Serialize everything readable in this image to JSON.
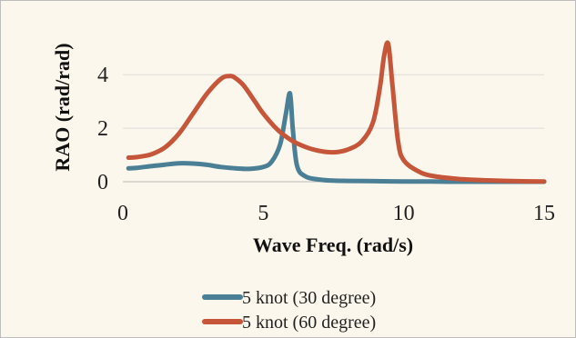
{
  "chart_data": {
    "type": "line",
    "xlabel": "Wave Freq. (rad/s)",
    "ylabel": "RAO (rad/rad)",
    "xlim": [
      0,
      15
    ],
    "ylim": [
      0,
      5.4
    ],
    "xticks": [
      "0",
      "5",
      "10",
      "15"
    ],
    "yticks": [
      "0",
      "2",
      "4"
    ],
    "grid": "horizontal",
    "legend_position": "bottom",
    "series": [
      {
        "name": "5 knot (30 degree)",
        "color": "#4a7f96",
        "x": [
          0.2,
          0.5,
          1.0,
          1.5,
          2.0,
          2.5,
          3.0,
          3.5,
          4.0,
          4.5,
          5.0,
          5.3,
          5.6,
          5.8,
          5.95,
          6.05,
          6.2,
          6.5,
          7.0,
          7.5,
          8.0,
          9.0,
          10.0,
          11.0,
          12.0,
          13.0,
          14.0,
          15.0
        ],
        "y": [
          0.5,
          0.52,
          0.58,
          0.64,
          0.69,
          0.68,
          0.63,
          0.55,
          0.5,
          0.48,
          0.55,
          0.75,
          1.4,
          2.5,
          3.3,
          2.0,
          0.6,
          0.2,
          0.08,
          0.04,
          0.03,
          0.02,
          0.01,
          0.01,
          0.0,
          0.0,
          0.0,
          0.0
        ]
      },
      {
        "name": "5 knot (60 degree)",
        "color": "#c6563a",
        "x": [
          0.2,
          0.5,
          1.0,
          1.5,
          2.0,
          2.5,
          3.0,
          3.5,
          3.8,
          4.0,
          4.3,
          4.7,
          5.0,
          5.5,
          6.0,
          6.5,
          7.0,
          7.5,
          8.0,
          8.5,
          8.9,
          9.15,
          9.3,
          9.45,
          9.6,
          9.8,
          10.0,
          10.5,
          11.0,
          12.0,
          13.0,
          14.0,
          15.0
        ],
        "y": [
          0.9,
          0.92,
          1.02,
          1.28,
          1.8,
          2.55,
          3.3,
          3.85,
          3.95,
          3.88,
          3.6,
          3.0,
          2.55,
          1.95,
          1.55,
          1.3,
          1.15,
          1.1,
          1.2,
          1.5,
          2.2,
          3.5,
          4.7,
          5.15,
          3.6,
          1.5,
          0.8,
          0.4,
          0.22,
          0.1,
          0.05,
          0.02,
          0.01
        ]
      }
    ]
  }
}
